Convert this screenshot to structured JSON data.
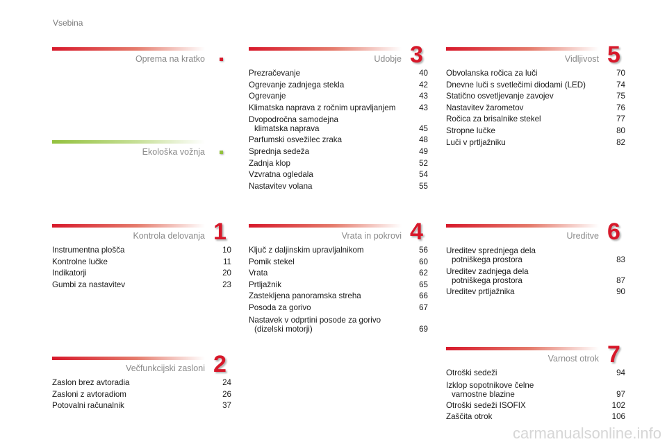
{
  "page_title": "Vsebina",
  "colors": {
    "accent_red": "#d7182a",
    "accent_green": "#93c13e"
  },
  "sections": [
    {
      "id": "oprema",
      "title": "Oprema na kratko",
      "marker": "dot",
      "color": "red",
      "items": []
    },
    {
      "id": "ekoloska",
      "title": "Ekološka vožnja",
      "marker": "dot",
      "color": "green",
      "items": []
    },
    {
      "id": "kontrola",
      "title": "Kontrola delovanja",
      "marker": "1",
      "color": "red",
      "items": [
        {
          "label": "Instrumentna plošča",
          "page": "10"
        },
        {
          "label": "Kontrolne lučke",
          "page": "11"
        },
        {
          "label": "Indikatorji",
          "page": "20"
        },
        {
          "label": "Gumbi za nastavitev",
          "page": "23"
        }
      ]
    },
    {
      "id": "vecfunkcijski",
      "title": "Večfunkcijski zasloni",
      "marker": "2",
      "color": "red",
      "items": [
        {
          "label": "Zaslon brez avtoradia",
          "page": "24"
        },
        {
          "label": "Zasloni z avtoradiom",
          "page": "26"
        },
        {
          "label": "Potovalni računalnik",
          "page": "37"
        }
      ]
    },
    {
      "id": "udobje",
      "title": "Udobje",
      "marker": "3",
      "color": "red",
      "items": [
        {
          "label": "Prezračevanje",
          "page": "40"
        },
        {
          "label": "Ogrevanje zadnjega stekla",
          "page": "42"
        },
        {
          "label": "Ogrevanje",
          "page": "43"
        },
        {
          "label": "Klimatska naprava z ročnim upravljanjem",
          "page": "43"
        },
        {
          "label": "Dvopodročna samodejna",
          "label2": "klimatska naprava",
          "page": "45"
        },
        {
          "label": "Parfumski osvežilec zraka",
          "page": "48"
        },
        {
          "label": "Sprednja sedeža",
          "page": "49"
        },
        {
          "label": "Zadnja klop",
          "page": "52"
        },
        {
          "label": "Vzvratna ogledala",
          "page": "54"
        },
        {
          "label": "Nastavitev volana",
          "page": "55"
        }
      ]
    },
    {
      "id": "vrata",
      "title": "Vrata in pokrovi",
      "marker": "4",
      "color": "red",
      "items": [
        {
          "label": "Ključ z daljinskim upravljalnikom",
          "page": "56"
        },
        {
          "label": "Pomik stekel",
          "page": "60"
        },
        {
          "label": "Vrata",
          "page": "62"
        },
        {
          "label": "Prtljažnik",
          "page": "65"
        },
        {
          "label": "Zastekljena panoramska streha",
          "page": "66"
        },
        {
          "label": "Posoda za gorivo",
          "page": "67"
        },
        {
          "label": "Nastavek v odprtini posode za gorivo",
          "label2": "(dizelski motorji)",
          "page": "69"
        }
      ]
    },
    {
      "id": "vidljivost",
      "title": "Vidljivost",
      "marker": "5",
      "color": "red",
      "items": [
        {
          "label": "Obvolanska ročica za luči",
          "page": "70"
        },
        {
          "label": "Dnevne luči s svetlečimi diodami (LED)",
          "page": "74"
        },
        {
          "label": "Statično osvetljevanje zavojev",
          "page": "75"
        },
        {
          "label": "Nastavitev žarometov",
          "page": "76"
        },
        {
          "label": "Ročica za brisalnike stekel",
          "page": "77"
        },
        {
          "label": "Stropne lučke",
          "page": "80"
        },
        {
          "label": "Luči v prtljažniku",
          "page": "82"
        }
      ]
    },
    {
      "id": "ureditve",
      "title": "Ureditve",
      "marker": "6",
      "color": "red",
      "items": [
        {
          "label": "Ureditev sprednjega dela",
          "label2": "potniškega prostora",
          "page": "83"
        },
        {
          "label": "Ureditev zadnjega dela",
          "label2": "potniškega prostora",
          "page": "87"
        },
        {
          "label": "Ureditev prtljažnika",
          "page": "90"
        }
      ]
    },
    {
      "id": "varnost",
      "title": "Varnost otrok",
      "marker": "7",
      "color": "red",
      "items": [
        {
          "label": "Otroški sedeži",
          "page": "94"
        },
        {
          "label": "Izklop sopotnikove čelne",
          "label2": "varnostne blazine",
          "page": "97"
        },
        {
          "label": "Otroški sedeži ISOFIX",
          "page": "102"
        },
        {
          "label": "Zaščita otrok",
          "page": "106"
        }
      ]
    }
  ],
  "watermark": "carmanualsonline.info"
}
